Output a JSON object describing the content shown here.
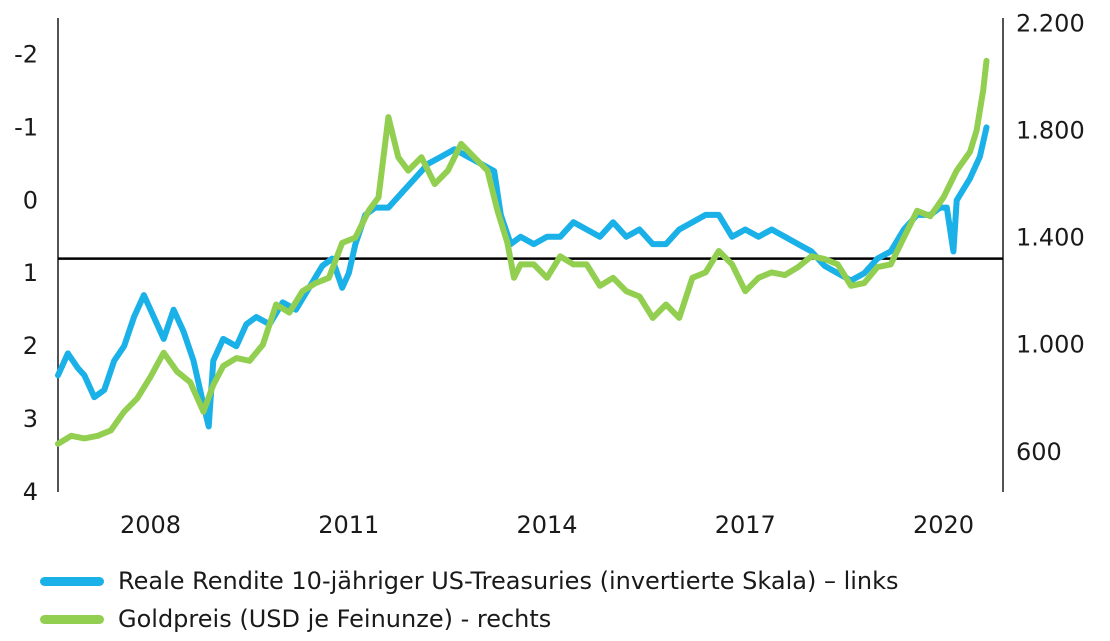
{
  "chart_data": {
    "type": "line",
    "y_left": {
      "ticks": [
        -2,
        -1,
        0,
        1,
        2,
        3,
        4
      ],
      "tick_labels": [
        "-2",
        "-1",
        "0",
        "1",
        "2",
        "3",
        "4"
      ],
      "range": [
        4,
        -2.5
      ],
      "inverted": true
    },
    "y_right": {
      "ticks": [
        600,
        1000,
        1400,
        1800,
        2200
      ],
      "tick_labels": [
        "600",
        "1.000",
        "1.400",
        "1.800",
        "2.200"
      ],
      "range": [
        450,
        2220
      ]
    },
    "x_ticks": [
      {
        "label": "2008",
        "value": 2008.0
      },
      {
        "label": "2011",
        "value": 2011.0
      },
      {
        "label": "2014",
        "value": 2014.0
      },
      {
        "label": "2017",
        "value": 2017.0
      },
      {
        "label": "2020",
        "value": 2020.0
      }
    ],
    "x_range": [
      2006.6,
      2020.9
    ],
    "reference_line": {
      "axis": "left",
      "value": 0.8
    },
    "series": [
      {
        "name": "Reale Rendite 10-jähriger US-Treasuries (invertierte Skala) – links",
        "axis": "left",
        "color": "#1ab0e8",
        "points": [
          [
            2006.6,
            2.4
          ],
          [
            2006.75,
            2.1
          ],
          [
            2006.9,
            2.3
          ],
          [
            2007.0,
            2.4
          ],
          [
            2007.15,
            2.7
          ],
          [
            2007.3,
            2.6
          ],
          [
            2007.45,
            2.2
          ],
          [
            2007.6,
            2.0
          ],
          [
            2007.75,
            1.6
          ],
          [
            2007.9,
            1.3
          ],
          [
            2008.0,
            1.5
          ],
          [
            2008.2,
            1.9
          ],
          [
            2008.35,
            1.5
          ],
          [
            2008.5,
            1.8
          ],
          [
            2008.65,
            2.2
          ],
          [
            2008.8,
            2.8
          ],
          [
            2008.88,
            3.1
          ],
          [
            2008.95,
            2.2
          ],
          [
            2009.1,
            1.9
          ],
          [
            2009.3,
            2.0
          ],
          [
            2009.45,
            1.7
          ],
          [
            2009.6,
            1.6
          ],
          [
            2009.8,
            1.7
          ],
          [
            2010.0,
            1.4
          ],
          [
            2010.2,
            1.5
          ],
          [
            2010.4,
            1.2
          ],
          [
            2010.6,
            0.9
          ],
          [
            2010.75,
            0.8
          ],
          [
            2010.9,
            1.2
          ],
          [
            2011.0,
            1.0
          ],
          [
            2011.1,
            0.6
          ],
          [
            2011.25,
            0.2
          ],
          [
            2011.4,
            0.1
          ],
          [
            2011.6,
            0.1
          ],
          [
            2011.8,
            -0.1
          ],
          [
            2012.0,
            -0.3
          ],
          [
            2012.2,
            -0.5
          ],
          [
            2012.4,
            -0.6
          ],
          [
            2012.6,
            -0.7
          ],
          [
            2012.8,
            -0.6
          ],
          [
            2013.0,
            -0.5
          ],
          [
            2013.2,
            -0.4
          ],
          [
            2013.3,
            0.2
          ],
          [
            2013.45,
            0.6
          ],
          [
            2013.6,
            0.5
          ],
          [
            2013.8,
            0.6
          ],
          [
            2014.0,
            0.5
          ],
          [
            2014.2,
            0.5
          ],
          [
            2014.4,
            0.3
          ],
          [
            2014.6,
            0.4
          ],
          [
            2014.8,
            0.5
          ],
          [
            2015.0,
            0.3
          ],
          [
            2015.2,
            0.5
          ],
          [
            2015.4,
            0.4
          ],
          [
            2015.6,
            0.6
          ],
          [
            2015.8,
            0.6
          ],
          [
            2016.0,
            0.4
          ],
          [
            2016.2,
            0.3
          ],
          [
            2016.4,
            0.2
          ],
          [
            2016.6,
            0.2
          ],
          [
            2016.8,
            0.5
          ],
          [
            2017.0,
            0.4
          ],
          [
            2017.2,
            0.5
          ],
          [
            2017.4,
            0.4
          ],
          [
            2017.6,
            0.5
          ],
          [
            2017.8,
            0.6
          ],
          [
            2018.0,
            0.7
          ],
          [
            2018.2,
            0.9
          ],
          [
            2018.4,
            1.0
          ],
          [
            2018.6,
            1.1
          ],
          [
            2018.8,
            1.0
          ],
          [
            2019.0,
            0.8
          ],
          [
            2019.2,
            0.7
          ],
          [
            2019.4,
            0.4
          ],
          [
            2019.6,
            0.2
          ],
          [
            2019.8,
            0.2
          ],
          [
            2019.95,
            0.1
          ],
          [
            2020.05,
            0.1
          ],
          [
            2020.15,
            0.7
          ],
          [
            2020.2,
            0.0
          ],
          [
            2020.4,
            -0.3
          ],
          [
            2020.55,
            -0.6
          ],
          [
            2020.65,
            -1.0
          ]
        ]
      },
      {
        "name": "Goldpreis (USD je Feinunze) - rechts",
        "axis": "right",
        "color": "#92cf50",
        "points": [
          [
            2006.6,
            630
          ],
          [
            2006.8,
            660
          ],
          [
            2007.0,
            650
          ],
          [
            2007.2,
            660
          ],
          [
            2007.4,
            680
          ],
          [
            2007.6,
            750
          ],
          [
            2007.8,
            800
          ],
          [
            2008.0,
            880
          ],
          [
            2008.2,
            970
          ],
          [
            2008.4,
            900
          ],
          [
            2008.6,
            860
          ],
          [
            2008.8,
            750
          ],
          [
            2008.95,
            850
          ],
          [
            2009.1,
            920
          ],
          [
            2009.3,
            950
          ],
          [
            2009.5,
            940
          ],
          [
            2009.7,
            1000
          ],
          [
            2009.9,
            1150
          ],
          [
            2010.1,
            1120
          ],
          [
            2010.3,
            1200
          ],
          [
            2010.5,
            1230
          ],
          [
            2010.7,
            1250
          ],
          [
            2010.9,
            1380
          ],
          [
            2011.1,
            1400
          ],
          [
            2011.3,
            1500
          ],
          [
            2011.45,
            1550
          ],
          [
            2011.6,
            1850
          ],
          [
            2011.75,
            1700
          ],
          [
            2011.9,
            1650
          ],
          [
            2012.1,
            1700
          ],
          [
            2012.3,
            1600
          ],
          [
            2012.5,
            1650
          ],
          [
            2012.7,
            1750
          ],
          [
            2012.9,
            1700
          ],
          [
            2013.1,
            1650
          ],
          [
            2013.25,
            1500
          ],
          [
            2013.4,
            1380
          ],
          [
            2013.5,
            1250
          ],
          [
            2013.6,
            1300
          ],
          [
            2013.8,
            1300
          ],
          [
            2014.0,
            1250
          ],
          [
            2014.2,
            1330
          ],
          [
            2014.4,
            1300
          ],
          [
            2014.6,
            1300
          ],
          [
            2014.8,
            1220
          ],
          [
            2015.0,
            1250
          ],
          [
            2015.2,
            1200
          ],
          [
            2015.4,
            1180
          ],
          [
            2015.6,
            1100
          ],
          [
            2015.8,
            1150
          ],
          [
            2016.0,
            1100
          ],
          [
            2016.2,
            1250
          ],
          [
            2016.4,
            1270
          ],
          [
            2016.6,
            1350
          ],
          [
            2016.8,
            1300
          ],
          [
            2017.0,
            1200
          ],
          [
            2017.2,
            1250
          ],
          [
            2017.4,
            1270
          ],
          [
            2017.6,
            1260
          ],
          [
            2017.8,
            1290
          ],
          [
            2018.0,
            1330
          ],
          [
            2018.2,
            1320
          ],
          [
            2018.4,
            1300
          ],
          [
            2018.6,
            1220
          ],
          [
            2018.8,
            1230
          ],
          [
            2019.0,
            1290
          ],
          [
            2019.2,
            1300
          ],
          [
            2019.4,
            1400
          ],
          [
            2019.6,
            1500
          ],
          [
            2019.8,
            1480
          ],
          [
            2020.0,
            1550
          ],
          [
            2020.2,
            1650
          ],
          [
            2020.4,
            1720
          ],
          [
            2020.5,
            1800
          ],
          [
            2020.6,
            1950
          ],
          [
            2020.65,
            2060
          ]
        ]
      }
    ]
  },
  "legend": [
    {
      "label": "Reale Rendite 10-jähriger US-Treasuries (invertierte Skala) – links",
      "color": "#1ab0e8"
    },
    {
      "label": "Goldpreis (USD je Feinunze) - rechts",
      "color": "#92cf50"
    }
  ]
}
